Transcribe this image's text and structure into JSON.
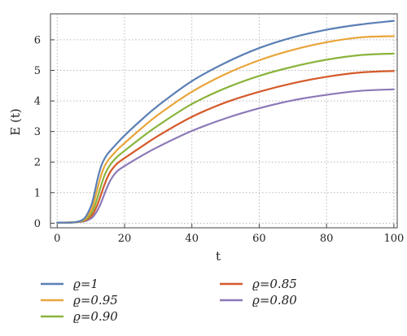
{
  "chart_data": {
    "type": "line",
    "title": "",
    "xlabel": "t",
    "ylabel": "E (t)",
    "xlim": [
      -2,
      101
    ],
    "ylim": [
      -0.15,
      6.85
    ],
    "xticks": [
      0,
      20,
      40,
      60,
      80,
      100
    ],
    "yticks": [
      0,
      1,
      2,
      3,
      4,
      5,
      6
    ],
    "grid": true,
    "grid_style": "dotted",
    "legend_position": "bottom, two columns",
    "x": [
      0,
      5,
      8,
      10,
      11,
      12,
      13,
      14,
      15,
      16,
      17,
      18,
      20,
      25,
      30,
      40,
      50,
      60,
      70,
      80,
      90,
      100
    ],
    "series": [
      {
        "name": "ϱ=1",
        "color": "#5b7fb5",
        "values": [
          0.02,
          0.03,
          0.15,
          0.55,
          0.95,
          1.45,
          1.85,
          2.1,
          2.27,
          2.4,
          2.52,
          2.64,
          2.87,
          3.38,
          3.85,
          4.65,
          5.25,
          5.73,
          6.08,
          6.33,
          6.5,
          6.62
        ]
      },
      {
        "name": "ϱ=0.95",
        "color": "#e8a53a",
        "values": [
          0.02,
          0.03,
          0.12,
          0.4,
          0.72,
          1.15,
          1.55,
          1.85,
          2.04,
          2.18,
          2.3,
          2.42,
          2.62,
          3.1,
          3.55,
          4.3,
          4.88,
          5.33,
          5.67,
          5.92,
          6.08,
          6.12
        ]
      },
      {
        "name": "ϱ=0.90",
        "color": "#8ab43c",
        "values": [
          0.02,
          0.03,
          0.1,
          0.3,
          0.52,
          0.85,
          1.22,
          1.55,
          1.78,
          1.95,
          2.08,
          2.19,
          2.37,
          2.8,
          3.2,
          3.9,
          4.42,
          4.82,
          5.12,
          5.35,
          5.5,
          5.55
        ]
      },
      {
        "name": "ϱ=0.85",
        "color": "#d45a2a",
        "values": [
          0.02,
          0.03,
          0.08,
          0.22,
          0.38,
          0.62,
          0.93,
          1.25,
          1.52,
          1.72,
          1.86,
          1.97,
          2.13,
          2.5,
          2.86,
          3.48,
          3.95,
          4.3,
          4.58,
          4.79,
          4.93,
          4.98
        ]
      },
      {
        "name": "ϱ=0.80",
        "color": "#8c79b7",
        "values": [
          0.02,
          0.03,
          0.06,
          0.15,
          0.26,
          0.43,
          0.66,
          0.95,
          1.22,
          1.44,
          1.6,
          1.72,
          1.87,
          2.2,
          2.5,
          3.02,
          3.43,
          3.76,
          4.02,
          4.2,
          4.33,
          4.38
        ]
      }
    ]
  }
}
